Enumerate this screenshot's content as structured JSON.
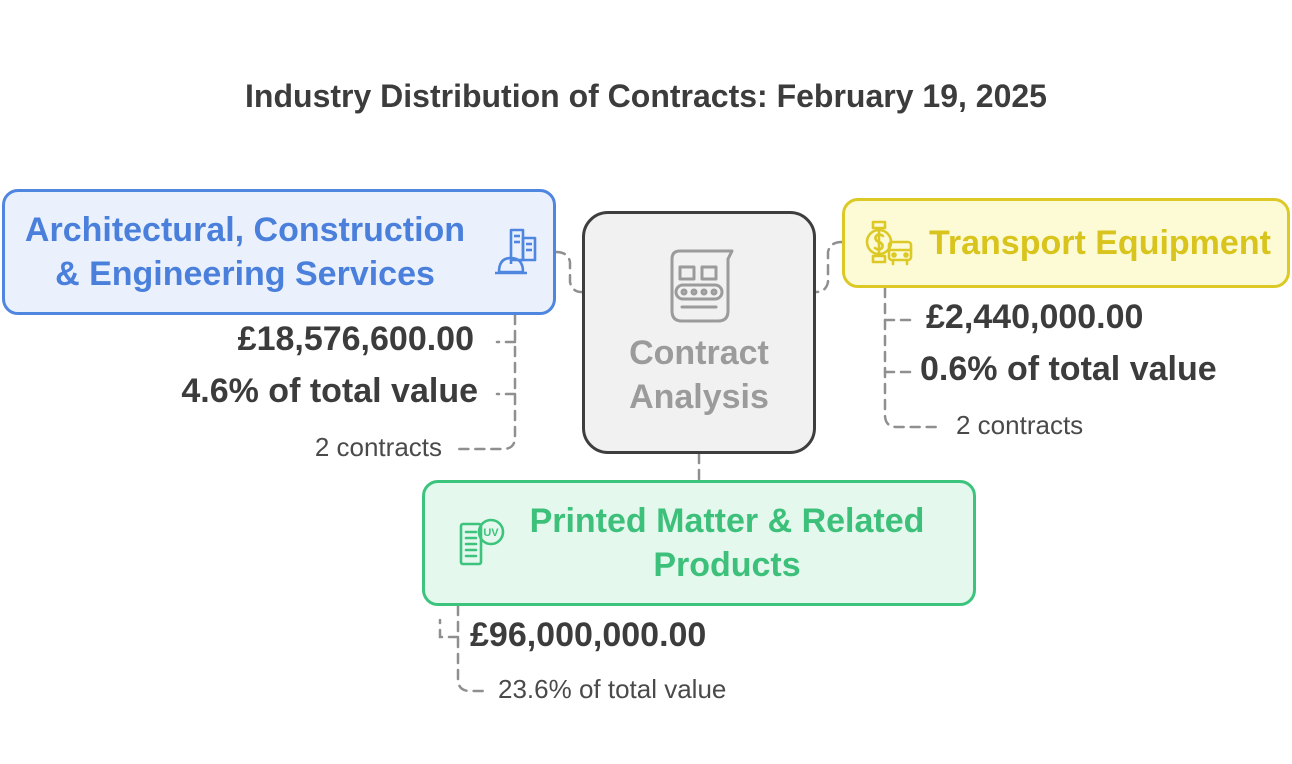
{
  "title": "Industry Distribution of Contracts: February 19, 2025",
  "center": {
    "label_line1": "Contract",
    "label_line2": "Analysis",
    "icon": "conveyor-icon"
  },
  "architectural": {
    "label_line1": "Architectural, Construction",
    "label_line2": "& Engineering Services",
    "value": "£18,576,600.00",
    "share": "4.6% of total value",
    "contracts": "2 contracts",
    "icon": "construction-icon",
    "color": "#4f86e0"
  },
  "transport": {
    "label": "Transport Equipment",
    "value": "£2,440,000.00",
    "share": "0.6% of total value",
    "contracts": "2 contracts",
    "icon": "transport-icon",
    "color": "#dcc925"
  },
  "printed": {
    "label_line1": "Printed Matter & Related",
    "label_line2": "Products",
    "value": "£96,000,000.00",
    "share": "23.6% of total value",
    "icon": "printed-matter-icon",
    "color": "#3cc47d"
  }
}
